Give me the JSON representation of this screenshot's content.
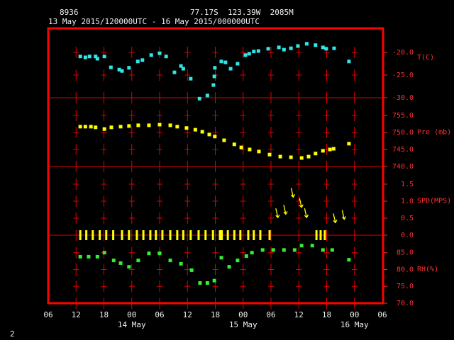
{
  "header": {
    "station": "8936",
    "location": "77.17S  123.39W  2085M",
    "period": "13 May 2015/120000UTC - 16 May 2015/000000UTC",
    "page": "2"
  },
  "chart_data": [
    {
      "type": "scatter",
      "ylabel": "T(C)",
      "color": "#33e6e6",
      "x": [
        12.9,
        14.0,
        14.9,
        16.2,
        16.6,
        18.1,
        19.5,
        21.3,
        21.9,
        23.4,
        25.3,
        26.3,
        28.2,
        30.0,
        31.4,
        33.2,
        34.6,
        35.1,
        36.7,
        38.6,
        40.3,
        41.6,
        41.8,
        41.9,
        43.3,
        44.2,
        45.3,
        46.8,
        48.5,
        49.3,
        50.3,
        51.3,
        53.4,
        55.7,
        56.8,
        58.3,
        59.8,
        61.7,
        63.6,
        65.2,
        65.9,
        67.6,
        70.8
      ],
      "values": [
        -20.9,
        -21.1,
        -20.9,
        -20.9,
        -21.4,
        -20.9,
        -23.3,
        -23.8,
        -24.1,
        -23.4,
        -22.0,
        -21.7,
        -20.6,
        -20.2,
        -20.9,
        -24.4,
        -23.0,
        -23.6,
        -25.8,
        -30.2,
        -29.5,
        -27.2,
        -25.3,
        -23.4,
        -22.0,
        -22.2,
        -23.6,
        -22.5,
        -20.6,
        -20.3,
        -19.8,
        -19.7,
        -19.2,
        -18.9,
        -19.4,
        -19.1,
        -18.6,
        -18.1,
        -18.4,
        -18.9,
        -19.2,
        -19.1,
        -22.0
      ],
      "ylim": [
        -30,
        -14.7
      ],
      "yticks": [
        {
          "value": -30,
          "label": "-30.0"
        },
        {
          "value": -25,
          "label": "-25.0"
        },
        {
          "value": -20,
          "label": "-20.0"
        }
      ]
    },
    {
      "type": "scatter",
      "ylabel": "Pre (mb)",
      "color": "#ffff00",
      "x": [
        12.9,
        14.0,
        15.2,
        16.2,
        18.1,
        19.6,
        21.6,
        23.4,
        25.4,
        27.7,
        30.0,
        32.3,
        33.8,
        35.8,
        37.7,
        39.2,
        40.7,
        41.9,
        43.9,
        46.1,
        47.6,
        49.4,
        51.4,
        53.7,
        56.0,
        58.3,
        60.6,
        62.1,
        63.6,
        65.2,
        66.7,
        67.5,
        70.8
      ],
      "values": [
        751.7,
        751.7,
        751.7,
        751.5,
        751.0,
        751.5,
        751.7,
        751.9,
        752.1,
        752.1,
        752.3,
        752.1,
        751.7,
        751.3,
        750.8,
        750.2,
        749.4,
        748.8,
        747.7,
        746.5,
        745.6,
        745.0,
        744.4,
        743.5,
        742.9,
        742.7,
        742.5,
        742.9,
        743.8,
        744.6,
        745.0,
        745.2,
        746.7
      ],
      "ylim": [
        740,
        760.2
      ],
      "yticks": [
        {
          "value": 740,
          "label": "740.0"
        },
        {
          "value": 745,
          "label": "745.0"
        },
        {
          "value": 750,
          "label": "750.0"
        },
        {
          "value": 755,
          "label": "755.0"
        }
      ]
    },
    {
      "type": "wind",
      "ylabel": "SPD(MPS)",
      "color": "#ffff00",
      "x": [
        12.9,
        14.2,
        15.6,
        17.1,
        18.5,
        20.0,
        21.9,
        23.4,
        25.1,
        26.5,
        28.0,
        29.2,
        30.6,
        32.3,
        33.8,
        35.1,
        36.7,
        38.4,
        39.9,
        41.5,
        43.0,
        43.4,
        44.7,
        46.1,
        47.4,
        49.1,
        50.3,
        51.7,
        53.7,
        55.5,
        57.2,
        58.8,
        60.6,
        61.7,
        63.8,
        64.7,
        65.6,
        67.9,
        69.8
      ],
      "values": [
        0,
        0,
        0,
        0,
        0,
        0,
        0,
        0,
        0,
        0,
        0,
        0,
        0,
        0,
        0,
        0,
        0,
        0,
        0,
        0,
        0,
        0,
        0,
        0,
        0,
        0,
        0,
        0,
        0,
        0.6,
        0.7,
        1.2,
        0.9,
        0.6,
        0,
        0,
        0,
        0.45,
        0.55
      ],
      "ylim": [
        0,
        2.02
      ],
      "yticks": [
        {
          "value": 0,
          "label": "0.0"
        },
        {
          "value": 0.5,
          "label": "0.5"
        },
        {
          "value": 1,
          "label": "1.0"
        },
        {
          "value": 1.5,
          "label": "1.5"
        }
      ]
    },
    {
      "type": "scatter",
      "ylabel": "RH(%)",
      "color": "#33ee33",
      "x": [
        12.9,
        14.7,
        16.6,
        18.1,
        20.1,
        21.6,
        23.4,
        25.4,
        27.7,
        30.0,
        32.3,
        34.6,
        36.9,
        38.7,
        40.3,
        41.8,
        43.3,
        45.0,
        46.8,
        48.7,
        49.9,
        52.2,
        54.5,
        56.8,
        59.1,
        60.6,
        62.9,
        65.2,
        67.2,
        70.8
      ],
      "values": [
        83.8,
        83.8,
        83.8,
        85.0,
        82.7,
        81.9,
        80.8,
        82.7,
        84.8,
        84.8,
        82.7,
        81.7,
        79.8,
        76.0,
        76.0,
        76.7,
        83.5,
        80.8,
        82.7,
        84.0,
        85.0,
        85.8,
        85.8,
        85.8,
        85.8,
        87.1,
        87.1,
        85.8,
        85.8,
        82.9
      ],
      "ylim": [
        70,
        90.2
      ],
      "yticks": [
        {
          "value": 70,
          "label": "70.0"
        },
        {
          "value": 75,
          "label": "75.0"
        },
        {
          "value": 80,
          "label": "80.0"
        },
        {
          "value": 85,
          "label": "85.0"
        }
      ],
      "xlim": [
        6,
        78
      ],
      "xticks": [
        {
          "value": 6,
          "label": "06"
        },
        {
          "value": 12,
          "label": "12"
        },
        {
          "value": 18,
          "label": "18"
        },
        {
          "value": 24,
          "label": "00"
        },
        {
          "value": 30,
          "label": "06"
        },
        {
          "value": 36,
          "label": "12"
        },
        {
          "value": 42,
          "label": "18"
        },
        {
          "value": 48,
          "label": "00"
        },
        {
          "value": 54,
          "label": "06"
        },
        {
          "value": 60,
          "label": "12"
        },
        {
          "value": 66,
          "label": "18"
        },
        {
          "value": 72,
          "label": "00"
        },
        {
          "value": 78,
          "label": "06"
        }
      ],
      "date_labels": [
        {
          "value": 24,
          "label": "14 May"
        },
        {
          "value": 48,
          "label": "15 May"
        },
        {
          "value": 72,
          "label": "16 May"
        }
      ]
    }
  ]
}
